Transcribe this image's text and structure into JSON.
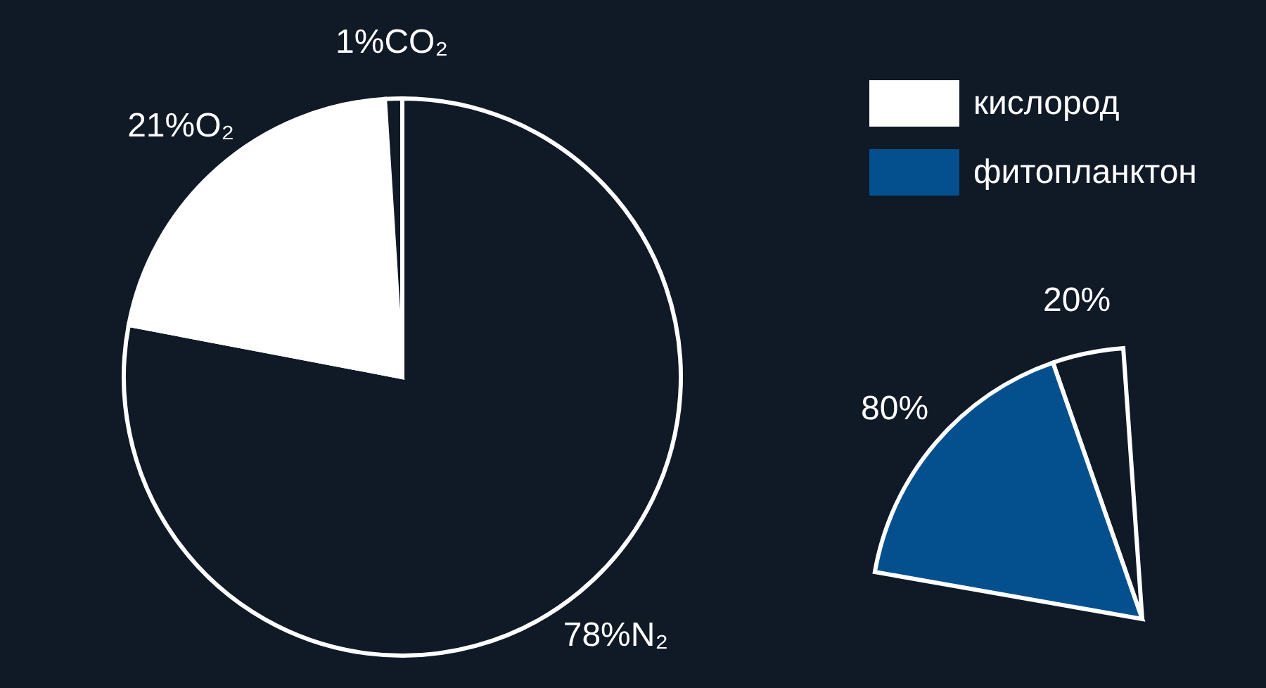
{
  "chart_data": [
    {
      "type": "pie",
      "categories": [
        null,
        "кислород",
        null
      ],
      "values": [
        78,
        21,
        1
      ],
      "colors": [
        "#101926",
        "#ffffff",
        "#101926"
      ],
      "value_labels": [
        "78%N₂",
        "21%O₂",
        "1%CO₂"
      ],
      "legend": "right"
    },
    {
      "type": "pie",
      "categories": [
        null,
        "фитопланктон"
      ],
      "values": [
        20,
        80
      ],
      "colors": [
        "#101926",
        "#04508f"
      ],
      "value_labels": [
        "20%",
        "80%"
      ],
      "legend": "top right"
    }
  ]
}
